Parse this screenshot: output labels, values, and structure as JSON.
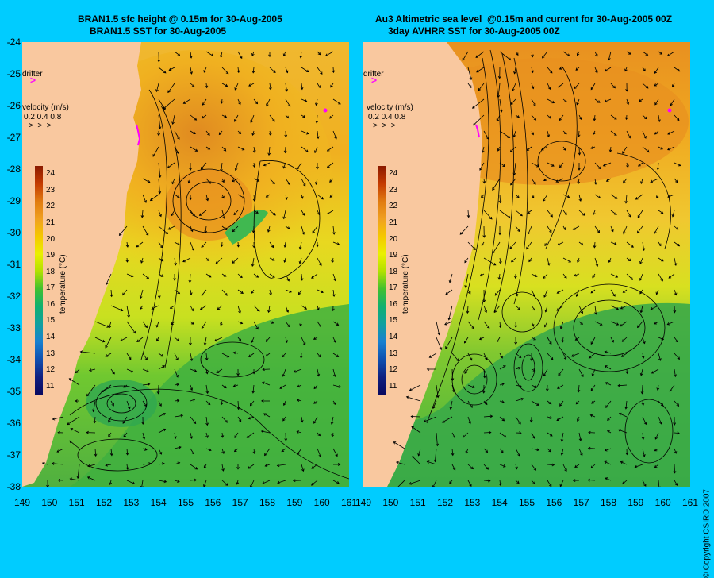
{
  "left_panel": {
    "title_line1": "BRAN1.5 sfc height @ 0.15m for 30-Aug-2005",
    "title_line2": "BRAN1.5 SST for 30-Aug-2005",
    "drifter_label": "drifter",
    "velocity_label": "velocity (m/s)",
    "velocity_scale": "0.2 0.4 0.8",
    "colorbar_unit": "temperature (°C)"
  },
  "right_panel": {
    "title_line1": "Au3 Altimetric sea level  @0.15m and current for 30-Aug-2005 00Z",
    "title_line2": "3day AVHRR SST for 30-Aug-2005 00Z",
    "drifter_label": "drifter",
    "velocity_label": "velocity (m/s)",
    "velocity_scale": "0.2 0.4 0.8",
    "colorbar_unit": "temperature (°C)"
  },
  "axes": {
    "latitude_ticks": [
      "-24",
      "-25",
      "-26",
      "-27",
      "-28",
      "-29",
      "-30",
      "-31",
      "-32",
      "-33",
      "-34",
      "-35",
      "-36",
      "-37",
      "-38"
    ],
    "longitude_ticks_left": [
      "149",
      "150",
      "151",
      "152",
      "153",
      "154",
      "155",
      "156",
      "157",
      "158",
      "159",
      "160",
      "161"
    ],
    "longitude_ticks_right": [
      "149",
      "150",
      "151",
      "152",
      "153",
      "154",
      "155",
      "156",
      "157",
      "158",
      "159",
      "160",
      "161"
    ],
    "lat_range": [
      -38,
      -24
    ],
    "lon_range": [
      149,
      161
    ]
  },
  "colorbar": {
    "ticks": [
      "24",
      "23",
      "22",
      "21",
      "20",
      "19",
      "18",
      "17",
      "16",
      "15",
      "14",
      "13",
      "12",
      "11"
    ],
    "range": [
      10.5,
      24.5
    ],
    "colors": [
      "#8b1a00",
      "#c43a00",
      "#e07a10",
      "#f0a020",
      "#f5c800",
      "#eaf000",
      "#b0e000",
      "#40c030",
      "#10b070",
      "#10a0a0",
      "#1880d0",
      "#1050b0",
      "#102080",
      "#0a0a60"
    ]
  },
  "copyright": "© Copyright CSIRO 2007",
  "colors": {
    "background": "#00ccff",
    "land": "#f9c89f",
    "drifter": "#ff00ff"
  }
}
